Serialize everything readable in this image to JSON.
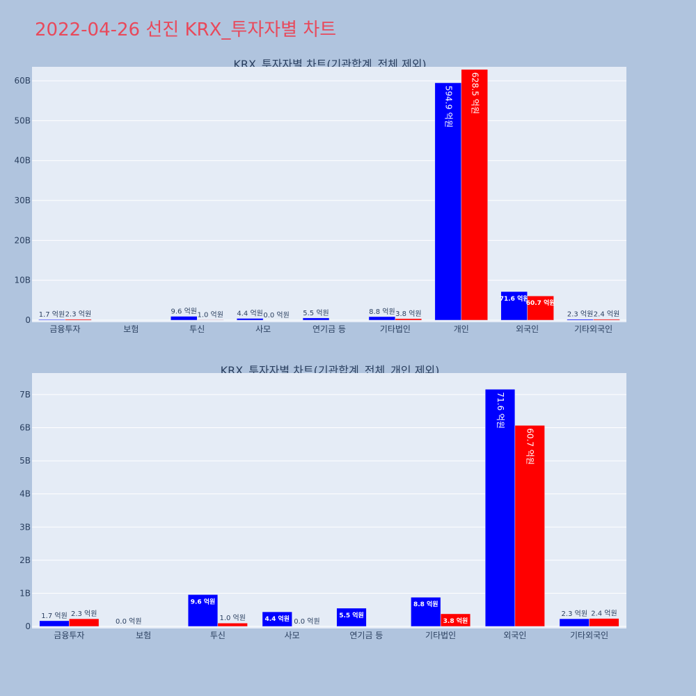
{
  "page_title": "2022-04-26 선진 KRX_투자자별 차트",
  "colors": {
    "buy": "#0000ff",
    "sell": "#ff0000",
    "plot_bg": "#e5ecf6",
    "page_bg": "#b0c4de",
    "title": "#e8495b"
  },
  "chart_data": [
    {
      "type": "bar",
      "title": "KRX_투자자별 차트(기관합계_전체 제외)",
      "categories": [
        "금융투자",
        "보험",
        "투신",
        "사모",
        "연기금 등",
        "기타법인",
        "개인",
        "외국인",
        "기타외국인"
      ],
      "series": [
        {
          "color": "#0000ff",
          "values": [
            0.17,
            0,
            0.96,
            0.44,
            0.55,
            0.88,
            59.49,
            7.16,
            0.23
          ],
          "labels": [
            "1.7 억원",
            "",
            "9.6 억원",
            "4.4 억원",
            "5.5 억원",
            "8.8 억원",
            "594.9 억원",
            "71.6 억원",
            "2.3 억원"
          ]
        },
        {
          "color": "#ff0000",
          "values": [
            0.23,
            0,
            0.1,
            0.0,
            0,
            0.38,
            62.85,
            6.07,
            0.24
          ],
          "labels": [
            "2.3 억원",
            "",
            "1.0 억원",
            "0.0 억원",
            "",
            "3.8 억원",
            "628.5 억원",
            "60.7 억원",
            "2.4 억원"
          ]
        }
      ],
      "yticks": [
        0,
        10,
        20,
        30,
        40,
        50,
        60
      ],
      "ytick_labels": [
        "0",
        "10B",
        "20B",
        "30B",
        "40B",
        "50B",
        "60B"
      ],
      "ylim": [
        0,
        63.5
      ],
      "grid": true
    },
    {
      "type": "bar",
      "title": "KRX_투자자별 차트(기관합계_전체_개인 제외)",
      "categories": [
        "금융투자",
        "보험",
        "투신",
        "사모",
        "연기금 등",
        "기타법인",
        "외국인",
        "기타외국인"
      ],
      "series": [
        {
          "color": "#0000ff",
          "values": [
            0.17,
            0.0,
            0.96,
            0.44,
            0.55,
            0.88,
            7.16,
            0.23
          ],
          "labels": [
            "1.7 억원",
            "0.0 억원",
            "9.6 억원",
            "4.4 억원",
            "5.5 억원",
            "8.8 억원",
            "71.6 억원",
            "2.3 억원"
          ]
        },
        {
          "color": "#ff0000",
          "values": [
            0.23,
            0,
            0.1,
            0.0,
            0,
            0.38,
            6.07,
            0.24
          ],
          "labels": [
            "2.3 억원",
            "",
            "1.0 억원",
            "0.0 억원",
            "",
            "3.8 억원",
            "60.7 억원",
            "2.4 억원"
          ]
        }
      ],
      "yticks": [
        0,
        1,
        2,
        3,
        4,
        5,
        6,
        7
      ],
      "ytick_labels": [
        "0",
        "1B",
        "2B",
        "3B",
        "4B",
        "5B",
        "6B",
        "7B"
      ],
      "ylim": [
        0,
        7.65
      ],
      "grid": true
    }
  ]
}
